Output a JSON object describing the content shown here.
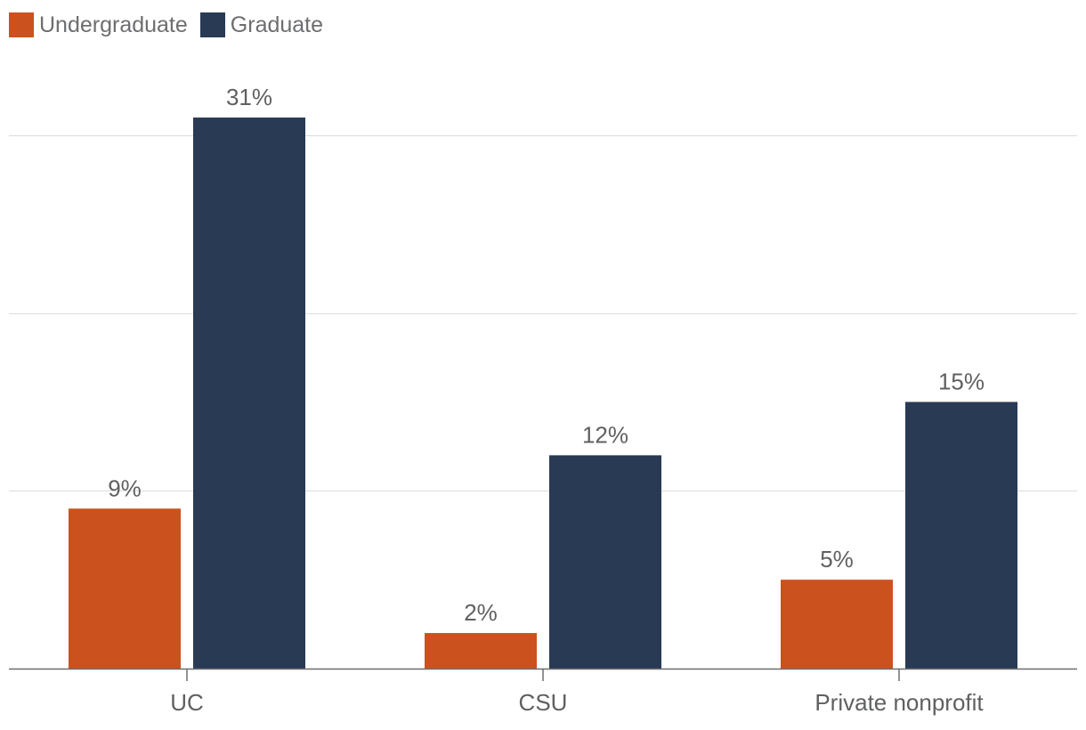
{
  "chart_data": {
    "type": "bar",
    "categories": [
      "UC",
      "CSU",
      "Private nonprofit"
    ],
    "series": [
      {
        "name": "Undergraduate",
        "color": "#cb521e",
        "values": [
          9,
          2,
          5
        ]
      },
      {
        "name": "Graduate",
        "color": "#293a55",
        "values": [
          31,
          12,
          15
        ]
      }
    ],
    "data_labels": [
      [
        "9%",
        "2%",
        "5%"
      ],
      [
        "31%",
        "12%",
        "15%"
      ]
    ],
    "ylim": [
      0,
      30
    ],
    "gridlines": [
      0,
      10,
      20,
      30
    ],
    "grid": true,
    "y_tick_labels_shown": false,
    "legend_position": "top-left",
    "title": "",
    "xlabel": "",
    "ylabel": ""
  }
}
